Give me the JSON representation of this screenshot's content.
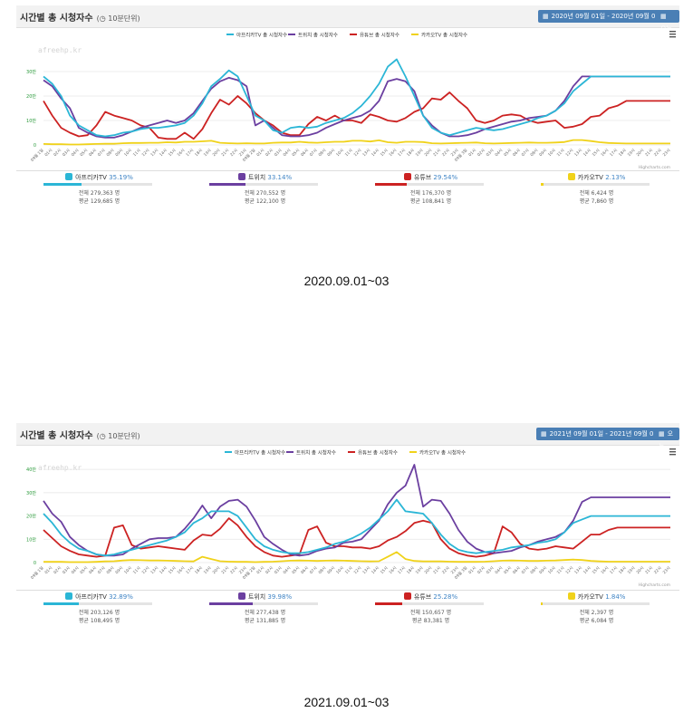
{
  "panels": [
    {
      "title": "시간별 총 시청자수",
      "subtitle": "(◷ 10분단위)",
      "date_range": "2020년 09월 01일 - 2020년 09월 03일",
      "today_label": "오늘",
      "menu_icon": "hamburger-icon",
      "watermark": "afreehp.kr",
      "credit": "Highcharts.com",
      "stats": [
        {
          "name": "아프리카TV",
          "pct": "35.19%",
          "total": "전체 279,363 명",
          "avg": "평균 129,685 명",
          "fill": 0.3519,
          "icon": "afreecatv-icon"
        },
        {
          "name": "트위치",
          "pct": "33.14%",
          "total": "전체 270,552 명",
          "avg": "평균 122,100 명",
          "fill": 0.3314,
          "icon": "twitch-icon"
        },
        {
          "name": "유튜브",
          "pct": "29.54%",
          "total": "전체 176,370 명",
          "avg": "평균 108,841 명",
          "fill": 0.2954,
          "icon": "youtube-icon"
        },
        {
          "name": "카카오TV",
          "pct": "2.13%",
          "total": "전체 6,424 명",
          "avg": "평균 7,860 명",
          "fill": 0.0213,
          "icon": "kakaotv-icon"
        }
      ]
    },
    {
      "title": "시간별 총 시청자수",
      "subtitle": "(◷ 10분단위)",
      "date_range": "2021년 09월 01일 - 2021년 09월 03일",
      "today_label": "오늘",
      "menu_icon": "hamburger-icon",
      "watermark": "afreehp.kr",
      "credit": "Highcharts.com",
      "stats": [
        {
          "name": "아프리카TV",
          "pct": "32.89%",
          "total": "전체 203,126 명",
          "avg": "평균 108,495 명",
          "fill": 0.3289,
          "icon": "afreecatv-icon"
        },
        {
          "name": "트위치",
          "pct": "39.98%",
          "total": "전체 277,438 명",
          "avg": "평균 131,885 명",
          "fill": 0.3998,
          "icon": "twitch-icon"
        },
        {
          "name": "유튜브",
          "pct": "25.28%",
          "total": "전체 150,657 명",
          "avg": "평균 83,381 명",
          "fill": 0.2528,
          "icon": "youtube-icon"
        },
        {
          "name": "카카오TV",
          "pct": "1.84%",
          "total": "전체 2,397 명",
          "avg": "평균 6,084 명",
          "fill": 0.0184,
          "icon": "kakaotv-icon"
        }
      ]
    }
  ],
  "captions": [
    "2020.09.01~03",
    "2021.09.01~03"
  ],
  "colors": {
    "afreeca": "#2bb6d6",
    "twitch": "#6b3fa0",
    "youtube": "#cc2222",
    "kakao": "#f0d21a"
  },
  "chart_data": [
    {
      "type": "line",
      "title": "",
      "xlabel": "",
      "ylabel": "",
      "ylim": [
        0,
        40000
      ],
      "yticks": [
        0,
        10000,
        20000,
        30000
      ],
      "ytick_labels": [
        "0",
        "10만",
        "20만",
        "30만"
      ],
      "legend_position": "top",
      "grid": true,
      "categories": [
        "09월 1일",
        "01시",
        "02시",
        "03시",
        "04시",
        "05시",
        "06시",
        "07시",
        "08시",
        "09시",
        "10시",
        "11시",
        "12시",
        "13시",
        "14시",
        "15시",
        "16시",
        "17시",
        "18시",
        "19시",
        "20시",
        "21시",
        "22시",
        "23시",
        "09월 2일",
        "01시",
        "02시",
        "03시",
        "04시",
        "05시",
        "06시",
        "07시",
        "08시",
        "09시",
        "10시",
        "11시",
        "12시",
        "13시",
        "14시",
        "15시",
        "16시",
        "17시",
        "18시",
        "19시",
        "20시",
        "21시",
        "22시",
        "23시",
        "09월 3일",
        "01시",
        "02시",
        "03시",
        "04시",
        "05시",
        "06시",
        "07시",
        "08시",
        "09시",
        "10시",
        "11시",
        "12시",
        "13시",
        "14시",
        "15시",
        "16시",
        "17시",
        "18시",
        "19시",
        "20시",
        "21시",
        "22시",
        "23시"
      ],
      "series": [
        {
          "name": "아프리카TV 총 시청자수",
          "color": "#2bb6d6",
          "values": [
            28000,
            25000,
            20000,
            12000,
            8000,
            6000,
            4000,
            3500,
            4000,
            5000,
            5500,
            6500,
            7000,
            7000,
            7500,
            8000,
            9000,
            12000,
            17000,
            24000,
            27000,
            30500,
            28000,
            20000,
            12000,
            10000,
            6000,
            5000,
            7000,
            7500,
            7000,
            7500,
            9000,
            10000,
            11000,
            13000,
            16000,
            20000,
            25000,
            32000,
            35000,
            28000,
            20000,
            12000,
            7000,
            5000,
            4000,
            5000,
            6000,
            7000,
            6500,
            6000,
            6500,
            7500,
            8500,
            9500,
            11000,
            12000,
            14000,
            17000,
            22000,
            25000,
            28000,
            28000,
            28000,
            28000,
            28000,
            28000,
            28000,
            28000,
            28000,
            28000
          ]
        },
        {
          "name": "트위치 총 시청자수",
          "color": "#6b3fa0",
          "values": [
            26500,
            24000,
            19000,
            15000,
            7000,
            5000,
            3500,
            3000,
            3000,
            4000,
            5500,
            7000,
            8000,
            9000,
            10000,
            9000,
            10000,
            13000,
            18000,
            23000,
            26000,
            27500,
            26500,
            24000,
            8000,
            10000,
            7000,
            4000,
            3500,
            3500,
            4000,
            5000,
            7000,
            8500,
            10000,
            11000,
            12000,
            14000,
            18000,
            26000,
            27000,
            26000,
            22000,
            12000,
            8000,
            5000,
            3500,
            3500,
            4000,
            5000,
            6500,
            7500,
            8500,
            9500,
            10000,
            11000,
            11500,
            12000,
            14000,
            18000,
            24000,
            28000,
            28000,
            28000,
            28000,
            28000,
            28000,
            28000,
            28000,
            28000,
            28000,
            28000
          ]
        },
        {
          "name": "유튜브 총 시청자수",
          "color": "#cc2222",
          "values": [
            18000,
            12000,
            7000,
            5000,
            3500,
            4000,
            8000,
            13500,
            12000,
            11000,
            10000,
            8000,
            7000,
            3000,
            2500,
            2500,
            5000,
            2500,
            6500,
            13000,
            18500,
            16500,
            20000,
            17000,
            13000,
            10000,
            8000,
            5000,
            4000,
            4000,
            8500,
            11500,
            10000,
            12000,
            10000,
            10000,
            9000,
            12500,
            11500,
            10000,
            9500,
            11000,
            13500,
            15000,
            19000,
            18500,
            21500,
            18000,
            15000,
            10000,
            9000,
            10000,
            12000,
            12500,
            12000,
            10000,
            9000,
            9500,
            10000,
            7000,
            7500,
            8500,
            11500,
            12000,
            15000,
            16000,
            18000,
            18000,
            18000,
            18000,
            18000,
            18000
          ]
        },
        {
          "name": "카카오TV 총 시청자수",
          "color": "#f0d21a",
          "values": [
            400,
            300,
            300,
            200,
            200,
            300,
            400,
            500,
            500,
            700,
            800,
            800,
            900,
            900,
            1100,
            1000,
            1300,
            1300,
            1500,
            1700,
            900,
            700,
            600,
            700,
            600,
            600,
            900,
            1000,
            1000,
            1300,
            1000,
            900,
            1100,
            1300,
            1300,
            1700,
            1700,
            1400,
            1900,
            1100,
            900,
            1300,
            1300,
            1200,
            700,
            600,
            700,
            800,
            900,
            1000,
            700,
            600,
            700,
            800,
            900,
            1000,
            900,
            900,
            1000,
            1200,
            2000,
            2000,
            1600,
            1100,
            800,
            700,
            600,
            600,
            600,
            600,
            600,
            600
          ]
        }
      ]
    },
    {
      "type": "line",
      "title": "",
      "xlabel": "",
      "ylabel": "",
      "ylim": [
        0,
        42000
      ],
      "yticks": [
        0,
        10000,
        20000,
        30000,
        40000
      ],
      "ytick_labels": [
        "0",
        "10만",
        "20만",
        "30만",
        "40만"
      ],
      "legend_position": "top",
      "grid": true,
      "categories": [
        "09월 1일",
        "01시",
        "02시",
        "03시",
        "04시",
        "05시",
        "06시",
        "07시",
        "08시",
        "09시",
        "10시",
        "11시",
        "12시",
        "13시",
        "14시",
        "15시",
        "16시",
        "17시",
        "18시",
        "19시",
        "20시",
        "21시",
        "22시",
        "23시",
        "09월 2일",
        "01시",
        "02시",
        "03시",
        "04시",
        "05시",
        "06시",
        "07시",
        "08시",
        "09시",
        "10시",
        "11시",
        "12시",
        "13시",
        "14시",
        "15시",
        "16시",
        "17시",
        "18시",
        "19시",
        "20시",
        "21시",
        "22시",
        "23시",
        "09월 3일",
        "01시",
        "02시",
        "03시",
        "04시",
        "05시",
        "06시",
        "07시",
        "08시",
        "09시",
        "10시",
        "11시",
        "12시",
        "13시",
        "14시",
        "15시",
        "16시",
        "17시",
        "18시",
        "19시",
        "20시",
        "21시",
        "22시",
        "23시"
      ],
      "series": [
        {
          "name": "아프리카TV 총 시청자수",
          "color": "#2bb6d6",
          "values": [
            21000,
            17000,
            12000,
            8500,
            6000,
            5000,
            3500,
            3000,
            3500,
            4500,
            5500,
            6500,
            7500,
            8500,
            9500,
            11000,
            13000,
            17000,
            19000,
            22000,
            22000,
            22000,
            20000,
            15000,
            10000,
            7000,
            5500,
            4500,
            4000,
            4000,
            4500,
            5500,
            6500,
            8000,
            9000,
            10500,
            12500,
            15000,
            18500,
            22000,
            27000,
            22000,
            21500,
            21000,
            17000,
            12000,
            8000,
            5500,
            4500,
            4000,
            4500,
            5000,
            5500,
            6500,
            7000,
            7500,
            8500,
            9000,
            10000,
            13000,
            17000,
            18500,
            20000,
            20000,
            20000,
            20000,
            20000,
            20000,
            20000,
            20000,
            20000,
            20000
          ]
        },
        {
          "name": "트위치 총 시청자수",
          "color": "#6b3fa0",
          "values": [
            26500,
            21000,
            17500,
            11000,
            7500,
            5000,
            3500,
            3000,
            3000,
            3500,
            6000,
            8000,
            10000,
            10500,
            10500,
            11000,
            14500,
            19000,
            24500,
            19000,
            24000,
            26500,
            27000,
            24000,
            18000,
            11000,
            8000,
            5500,
            3500,
            3000,
            3500,
            5000,
            6000,
            6500,
            8500,
            9000,
            10000,
            14000,
            18000,
            25000,
            30000,
            33000,
            42000,
            24000,
            27000,
            26500,
            21000,
            14000,
            9000,
            6000,
            4500,
            4000,
            4500,
            5000,
            6500,
            7500,
            9000,
            10000,
            11000,
            13000,
            18000,
            26000,
            28000,
            28000,
            28000,
            28000,
            28000,
            28000,
            28000,
            28000,
            28000,
            28000
          ]
        },
        {
          "name": "유튜브 총 시청자수",
          "color": "#cc2222",
          "values": [
            14000,
            10500,
            7000,
            5000,
            3500,
            3000,
            2500,
            3000,
            15000,
            16000,
            7500,
            6000,
            6500,
            7000,
            6500,
            6000,
            5500,
            9500,
            12000,
            11500,
            14500,
            19000,
            16000,
            11000,
            7000,
            4500,
            3000,
            2500,
            3000,
            3500,
            14000,
            15500,
            8500,
            7000,
            7000,
            6500,
            6500,
            6000,
            7000,
            9500,
            11000,
            13500,
            17000,
            18000,
            17000,
            10000,
            6000,
            4000,
            3000,
            2500,
            3000,
            4000,
            15500,
            13000,
            8000,
            6000,
            5500,
            6000,
            7000,
            6500,
            6000,
            9000,
            12000,
            12000,
            14000,
            15000,
            15000,
            15000,
            15000,
            15000,
            15000,
            15000
          ]
        },
        {
          "name": "카카오TV 총 시청자수",
          "color": "#f0d21a",
          "values": [
            300,
            300,
            300,
            200,
            200,
            200,
            300,
            500,
            600,
            900,
            1100,
            1000,
            900,
            900,
            800,
            700,
            600,
            500,
            2500,
            1500,
            600,
            400,
            300,
            300,
            200,
            300,
            400,
            600,
            800,
            900,
            800,
            700,
            800,
            900,
            800,
            700,
            600,
            500,
            600,
            2500,
            4500,
            1500,
            700,
            500,
            500,
            500,
            400,
            300,
            300,
            300,
            400,
            600,
            800,
            900,
            800,
            700,
            700,
            800,
            900,
            1100,
            1300,
            1100,
            700,
            500,
            400,
            400,
            400,
            400,
            400,
            400,
            400,
            400
          ]
        }
      ]
    }
  ]
}
